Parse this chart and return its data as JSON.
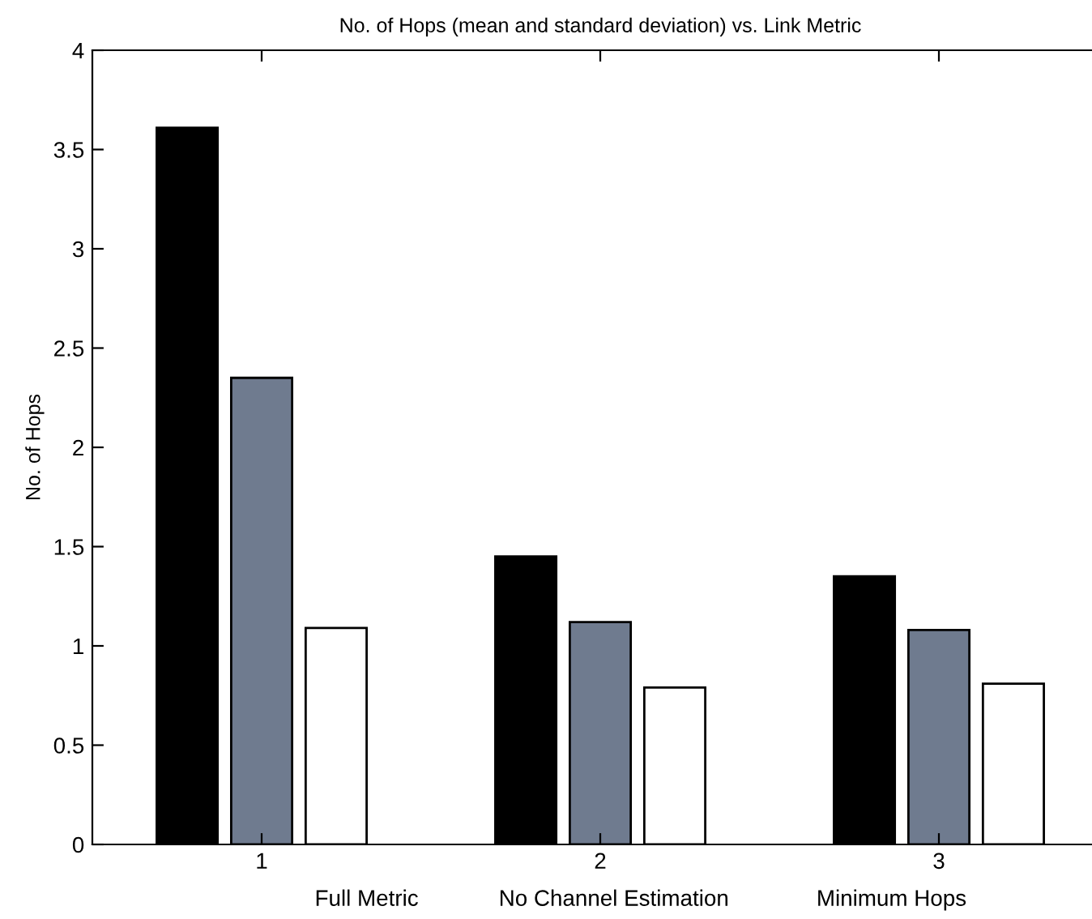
{
  "chart_data": {
    "type": "bar",
    "title": "No. of Hops (mean and standard deviation) vs. Link Metric",
    "ylabel": "No. of Hops",
    "categories": [
      "1",
      "2",
      "3"
    ],
    "series": [
      {
        "color": "#000000",
        "values": [
          3.61,
          1.45,
          1.35
        ]
      },
      {
        "color": "#6f7b8f",
        "values": [
          2.35,
          1.12,
          1.08
        ]
      },
      {
        "color": "#ffffff",
        "values": [
          1.09,
          0.79,
          0.81
        ]
      }
    ],
    "annotations": [
      "Full Metric",
      "No Channel Estimation",
      "Minimum Hops"
    ],
    "ylim": [
      0,
      4
    ],
    "yticks": [
      0,
      0.5,
      1,
      1.5,
      2,
      2.5,
      3,
      3.5,
      4
    ],
    "grid": false
  }
}
